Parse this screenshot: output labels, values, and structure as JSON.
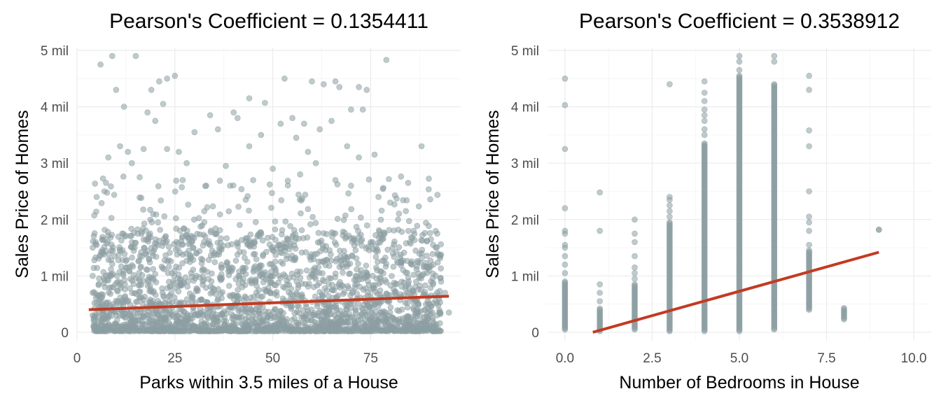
{
  "chart_data": [
    {
      "type": "scatter",
      "title": "Pearson's Coefficient = 0.1354411",
      "xlabel": "Parks within 3.5 miles of a House",
      "ylabel": "Sales Price of Homes",
      "xlim": [
        0,
        98
      ],
      "ylim": [
        -150000,
        5050000
      ],
      "x_ticks": [
        0,
        25,
        50,
        75
      ],
      "x_tick_labels": [
        "0",
        "25",
        "50",
        "75"
      ],
      "y_ticks": [
        0,
        1000000,
        2000000,
        3000000,
        4000000,
        5000000
      ],
      "y_tick_labels": [
        "0",
        "1 mil",
        "2 mil",
        "3 mil",
        "4 mil",
        "5 mil"
      ],
      "grid": true,
      "point_color": "#8c9ea3",
      "fit_line_color": "#c23b22",
      "fit_line": {
        "x": [
          3,
          95
        ],
        "y": [
          400000,
          640000
        ]
      },
      "points": [
        [
          6,
          4750000
        ],
        [
          9,
          4900000
        ],
        [
          15,
          4900000
        ],
        [
          21,
          4450000
        ],
        [
          23,
          4500000
        ],
        [
          25,
          4550000
        ],
        [
          10,
          4300000
        ],
        [
          19,
          4300000
        ],
        [
          22,
          4050000
        ],
        [
          12,
          4000000
        ],
        [
          18,
          3900000
        ],
        [
          20,
          3750000
        ],
        [
          53,
          4500000
        ],
        [
          60,
          4450000
        ],
        [
          66,
          4450000
        ],
        [
          63,
          4400000
        ],
        [
          67,
          4350000
        ],
        [
          72,
          4350000
        ],
        [
          74,
          4300000
        ],
        [
          44,
          4150000
        ],
        [
          48,
          4070000
        ],
        [
          70,
          3950000
        ],
        [
          73,
          3950000
        ],
        [
          55,
          3800000
        ],
        [
          79,
          4830000
        ],
        [
          34,
          3850000
        ],
        [
          40,
          3900000
        ],
        [
          52,
          3700000
        ],
        [
          41,
          3800000
        ],
        [
          58,
          3700000
        ],
        [
          62,
          3600000
        ],
        [
          65,
          3750000
        ],
        [
          30,
          3550000
        ],
        [
          36,
          3600000
        ],
        [
          47,
          3500000
        ],
        [
          56,
          3450000
        ],
        [
          88,
          3300000
        ],
        [
          11,
          3300000
        ],
        [
          13,
          3200000
        ],
        [
          17,
          3250000
        ],
        [
          23,
          3250000
        ],
        [
          26,
          3200000
        ],
        [
          44,
          3300000
        ],
        [
          59,
          3200000
        ],
        [
          69,
          3300000
        ],
        [
          76,
          3150000
        ],
        [
          8,
          3100000
        ],
        [
          14,
          3000000
        ],
        [
          28,
          3000000
        ],
        [
          38,
          2950000
        ],
        [
          50,
          2900000
        ],
        [
          61,
          3000000
        ],
        [
          72,
          3100000
        ],
        [
          80,
          2300000
        ],
        [
          84,
          2150000
        ],
        [
          86,
          1800000
        ],
        [
          90,
          1100000
        ],
        [
          91,
          1200000
        ],
        [
          93,
          900000
        ],
        [
          94,
          700000
        ],
        [
          95,
          350000
        ],
        [
          92,
          300000
        ],
        [
          89,
          400000
        ],
        [
          88,
          1400000
        ],
        [
          85,
          1600000
        ],
        [
          82,
          2000000
        ],
        [
          77,
          2400000
        ],
        [
          70,
          2600000
        ],
        [
          66,
          2700000
        ],
        [
          57,
          2800000
        ],
        [
          45,
          2700000
        ],
        [
          33,
          2600000
        ],
        [
          27,
          2700000
        ],
        [
          16,
          2750000
        ],
        [
          7,
          2500000
        ],
        [
          5,
          2400000
        ],
        [
          4,
          1500000
        ],
        [
          4,
          1000000
        ],
        [
          4,
          700000
        ],
        [
          4,
          300000
        ],
        [
          5,
          100000
        ],
        [
          6,
          50000
        ]
      ]
    },
    {
      "type": "scatter",
      "title": "Pearson's Coefficient = 0.3538912",
      "xlabel": "Number of Bedrooms in House",
      "ylabel": "Sales Price of Homes",
      "xlim": [
        -0.5,
        10.5
      ],
      "ylim": [
        -150000,
        5050000
      ],
      "x_ticks": [
        0,
        2.5,
        5,
        7.5,
        10
      ],
      "x_tick_labels": [
        "0.0",
        "2.5",
        "5.0",
        "7.5",
        "10.0"
      ],
      "y_ticks": [
        0,
        1000000,
        2000000,
        3000000,
        4000000,
        5000000
      ],
      "y_tick_labels": [
        "0",
        "1 mil",
        "2 mil",
        "3 mil",
        "4 mil",
        "5 mil"
      ],
      "grid": true,
      "point_color": "#8c9ea3",
      "fit_line_color": "#c23b22",
      "fit_line": {
        "x": [
          0.8,
          9.0
        ],
        "y": [
          0,
          1420000
        ]
      },
      "columns": [
        {
          "x": 0,
          "min": 50000,
          "max": 900000,
          "outliers": [
            1050000,
            1200000,
            1350000,
            1500000,
            1550000,
            1750000,
            1800000,
            2200000,
            3250000,
            4030000,
            4500000
          ]
        },
        {
          "x": 1,
          "min": 20000,
          "max": 420000,
          "outliers": [
            550000,
            700000,
            850000,
            1800000,
            2480000
          ]
        },
        {
          "x": 2,
          "min": 50000,
          "max": 850000,
          "outliers": [
            950000,
            1050000,
            1150000,
            1350000,
            1600000,
            1750000,
            2000000
          ]
        },
        {
          "x": 3,
          "min": 20000,
          "max": 1950000,
          "outliers": [
            2050000,
            2150000,
            2250000,
            2350000,
            2400000,
            4400000
          ]
        },
        {
          "x": 4,
          "min": 20000,
          "max": 3350000,
          "outliers": [
            3500000,
            3600000,
            3750000,
            3850000,
            3950000,
            4100000,
            4250000,
            4450000
          ]
        },
        {
          "x": 5,
          "min": 20000,
          "max": 4550000,
          "outliers": [
            4650000,
            4800000,
            4900000
          ]
        },
        {
          "x": 6,
          "min": 50000,
          "max": 4400000,
          "outliers": [
            4800000,
            4900000
          ]
        },
        {
          "x": 7,
          "min": 400000,
          "max": 1450000,
          "outliers": [
            1550000,
            1800000,
            1950000,
            2050000,
            2500000,
            3300000,
            3580000,
            4300000,
            4550000
          ]
        },
        {
          "x": 8,
          "min": 230000,
          "max": 430000,
          "outliers": []
        },
        {
          "x": 9,
          "min": 1820000,
          "max": 1820000,
          "outliers": []
        }
      ]
    }
  ]
}
